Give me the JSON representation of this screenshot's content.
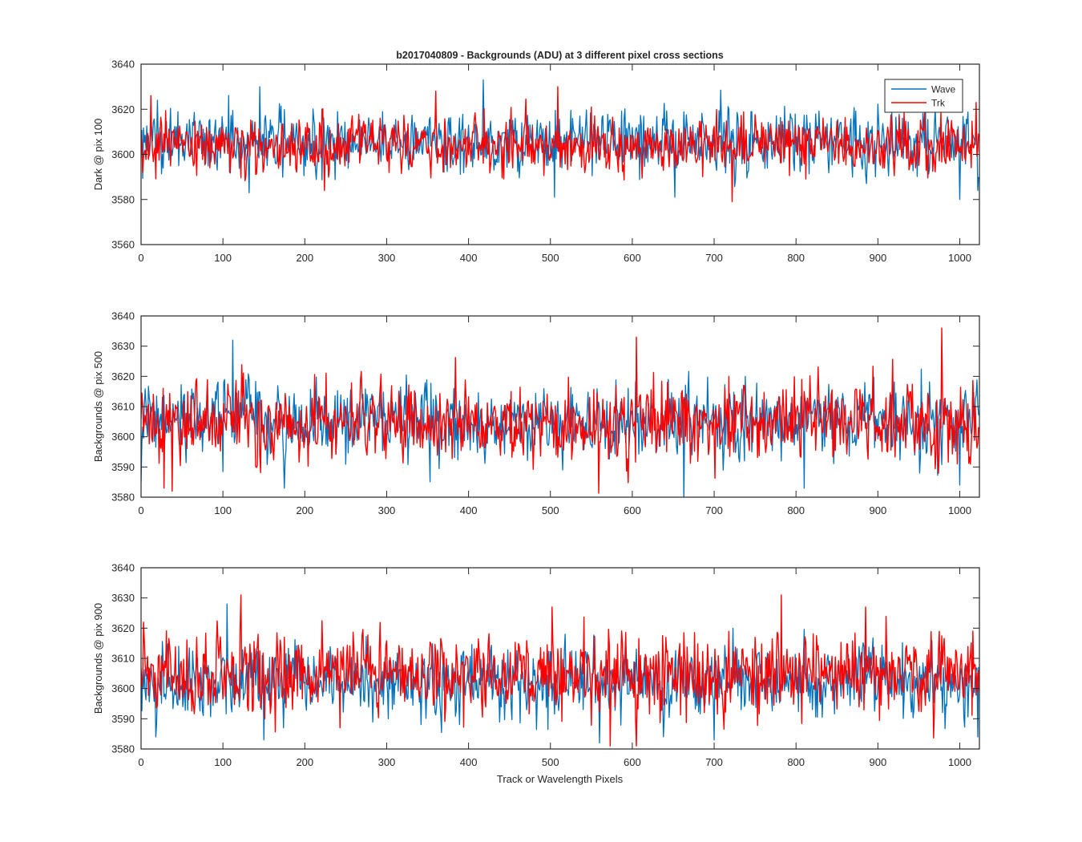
{
  "figure": {
    "title": "b2017040809 - Backgrounds (ADU) at 3 different pixel cross sections",
    "xlabel": "Track or Wavelength Pixels"
  },
  "legend": {
    "placement": "top-right (top panel)",
    "entries": [
      {
        "name": "Wave",
        "color": "#0072BD"
      },
      {
        "name": "Trk",
        "color": "#FF0000"
      }
    ]
  },
  "chart_data": [
    {
      "type": "line",
      "ylabel": "Dark @ pix 100",
      "xlim": [
        0,
        1024
      ],
      "ylim": [
        3560,
        3640
      ],
      "xticks": [
        0,
        100,
        200,
        300,
        400,
        500,
        600,
        700,
        800,
        900,
        1000
      ],
      "yticks": [
        3560,
        3580,
        3600,
        3620,
        3640
      ],
      "grid": false,
      "legend": true,
      "noise_model": {
        "n_points": 1024,
        "wave_mean": 3606,
        "wave_sd": 7,
        "trk_mean": 3604,
        "trk_sd": 6
      },
      "series": [
        {
          "name": "Wave",
          "color": "#0072BD",
          "notable_points": [
            [
              0,
              3600
            ],
            [
              132,
              3583
            ],
            [
              145,
              3630
            ],
            [
              418,
              3633
            ],
            [
              505,
              3581
            ],
            [
              652,
              3581
            ],
            [
              958,
              3625
            ],
            [
              1000,
              3580
            ]
          ]
        },
        {
          "name": "Trk",
          "color": "#FF0000",
          "notable_points": [
            [
              2,
              3592
            ],
            [
              12,
              3626
            ],
            [
              224,
              3584
            ],
            [
              360,
              3628
            ],
            [
              509,
              3630
            ],
            [
              722,
              3579
            ],
            [
              1020,
              3623
            ],
            [
              1024,
              3589
            ]
          ]
        }
      ]
    },
    {
      "type": "line",
      "ylabel": "Backgrounds @ pix 500",
      "xlim": [
        0,
        1024
      ],
      "ylim": [
        3580,
        3640
      ],
      "xticks": [
        0,
        100,
        200,
        300,
        400,
        500,
        600,
        700,
        800,
        900,
        1000
      ],
      "yticks": [
        3580,
        3590,
        3600,
        3610,
        3620,
        3630,
        3640
      ],
      "grid": false,
      "legend": false,
      "noise_model": {
        "n_points": 1024,
        "wave_mean": 3605,
        "wave_sd": 6,
        "trk_mean": 3605,
        "trk_sd": 6.5
      },
      "series": [
        {
          "name": "Wave",
          "color": "#0072BD",
          "notable_points": [
            [
              0,
              3585
            ],
            [
              112,
              3632
            ],
            [
              175,
              3583
            ],
            [
              663,
              3579
            ],
            [
              810,
              3583
            ],
            [
              1000,
              3584
            ]
          ]
        },
        {
          "name": "Trk",
          "color": "#FF0000",
          "notable_points": [
            [
              28,
              3583
            ],
            [
              38,
              3582
            ],
            [
              605,
              3633
            ],
            [
              718,
              3620
            ],
            [
              978,
              3636
            ],
            [
              1024,
              3626
            ]
          ]
        }
      ]
    },
    {
      "type": "line",
      "ylabel": "Backgrounds @ pix 900",
      "xlim": [
        0,
        1024
      ],
      "ylim": [
        3580,
        3640
      ],
      "xticks": [
        0,
        100,
        200,
        300,
        400,
        500,
        600,
        700,
        800,
        900,
        1000
      ],
      "yticks": [
        3580,
        3590,
        3600,
        3610,
        3620,
        3630,
        3640
      ],
      "grid": false,
      "legend": false,
      "noise_model": {
        "n_points": 1024,
        "wave_mean": 3602,
        "wave_sd": 6,
        "trk_mean": 3605,
        "trk_sd": 6.5
      },
      "series": [
        {
          "name": "Wave",
          "color": "#0072BD",
          "notable_points": [
            [
              18,
              3584
            ],
            [
              105,
              3628
            ],
            [
              150,
              3583
            ],
            [
              560,
              3582
            ],
            [
              700,
              3583
            ],
            [
              1022,
              3584
            ]
          ]
        },
        {
          "name": "Trk",
          "color": "#FF0000",
          "notable_points": [
            [
              3,
              3622
            ],
            [
              122,
              3631
            ],
            [
              502,
              3627
            ],
            [
              573,
              3581
            ],
            [
              605,
              3581
            ],
            [
              782,
              3631
            ],
            [
              885,
              3627
            ],
            [
              1024,
              3585
            ]
          ]
        }
      ]
    }
  ]
}
